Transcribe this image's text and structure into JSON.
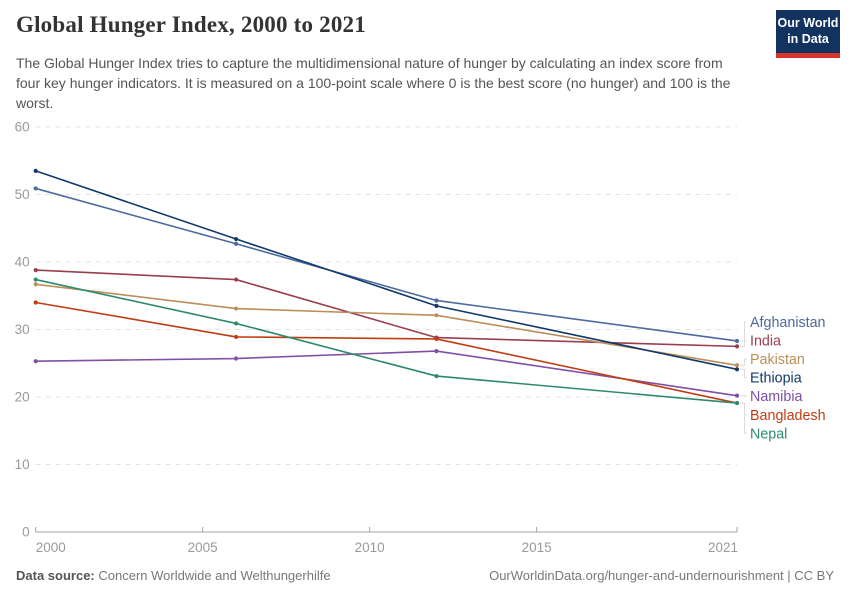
{
  "header": {
    "title": "Global Hunger Index, 2000 to 2021",
    "subtitle": "The Global Hunger Index tries to capture the multidimensional nature of hunger by calculating an index score from four key hunger indicators. It is measured on a 100-point scale where 0 is the best score (no hunger) and 100 is the worst.",
    "logo": {
      "line1": "Our World",
      "line2": "in Data",
      "bg_color": "#12335f",
      "accent_color": "#d8352e"
    }
  },
  "chart_data": {
    "type": "line",
    "x": [
      2000,
      2006,
      2012,
      2021
    ],
    "series": [
      {
        "name": "Afghanistan",
        "color": "#4C6A9C",
        "values": [
          50.9,
          42.7,
          34.3,
          28.3
        ]
      },
      {
        "name": "India",
        "color": "#9A3E4E",
        "values": [
          38.8,
          37.4,
          28.8,
          27.5
        ]
      },
      {
        "name": "Pakistan",
        "color": "#BC8E5A",
        "values": [
          36.7,
          33.1,
          32.1,
          24.7
        ]
      },
      {
        "name": "Ethiopia",
        "color": "#123A6D",
        "values": [
          53.5,
          43.4,
          33.5,
          24.1
        ]
      },
      {
        "name": "Namibia",
        "color": "#8150A5",
        "values": [
          25.3,
          25.7,
          26.8,
          20.2
        ]
      },
      {
        "name": "Bangladesh",
        "color": "#C03D13",
        "values": [
          34.0,
          28.9,
          28.6,
          19.1
        ]
      },
      {
        "name": "Nepal",
        "color": "#2E8A6E",
        "values": [
          37.4,
          30.9,
          23.1,
          19.1
        ]
      }
    ],
    "x_ticks": [
      "2000",
      "2005",
      "2010",
      "2015",
      "2021"
    ],
    "x_tick_years": [
      2000,
      2005,
      2010,
      2015,
      2021
    ],
    "y_ticks": [
      0,
      10,
      20,
      30,
      40,
      50,
      60
    ],
    "xlim": [
      2000,
      2021
    ],
    "ylim": [
      0,
      60
    ],
    "grid": "horizontal-dashed",
    "legend_position": "right-of-lines",
    "title": "Global Hunger Index, 2000 to 2021"
  },
  "footer": {
    "source_label": "Data source:",
    "source_value": " Concern Worldwide and Welthungerhilfe",
    "credit": "OurWorldinData.org/hunger-and-undernourishment | CC BY"
  }
}
